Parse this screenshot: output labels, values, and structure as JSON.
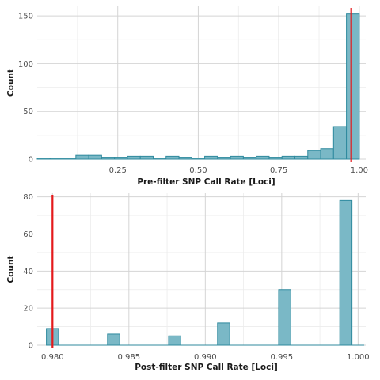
{
  "chart_data": [
    {
      "type": "bar",
      "subtype": "histogram",
      "xlabel": "Pre-filter SNP Call Rate [Loci]",
      "ylabel": "Count",
      "xlim": [
        0.0,
        1.02
      ],
      "ylim": [
        0,
        160
      ],
      "x_ticks": [
        0.25,
        0.5,
        0.75,
        1.0
      ],
      "x_tick_labels": [
        "0.25",
        "0.50",
        "0.75",
        "1.00"
      ],
      "y_ticks": [
        0,
        50,
        100,
        150
      ],
      "y_tick_labels": [
        "0",
        "50",
        "100",
        "150"
      ],
      "bin_width": 0.04,
      "bin_starts": [
        0.0,
        0.04,
        0.08,
        0.12,
        0.16,
        0.2,
        0.24,
        0.28,
        0.32,
        0.36,
        0.4,
        0.44,
        0.48,
        0.52,
        0.56,
        0.6,
        0.64,
        0.68,
        0.72,
        0.76,
        0.8,
        0.84,
        0.88,
        0.92,
        0.96
      ],
      "values": [
        1,
        1,
        1,
        4,
        4,
        2,
        2,
        3,
        3,
        1,
        3,
        2,
        1,
        3,
        2,
        3,
        2,
        3,
        2,
        3,
        3,
        9,
        11,
        34,
        152
      ],
      "threshold_line": 0.975,
      "grid": true,
      "bar_color": "#7ab8c6",
      "bar_edge_color": "#2f8a9e",
      "line_color": "#e41a1c"
    },
    {
      "type": "bar",
      "subtype": "histogram",
      "xlabel": "Post-filter SNP Call Rate [Loci]",
      "ylabel": "Count",
      "xlim": [
        0.979,
        1.0005
      ],
      "ylim": [
        0,
        82
      ],
      "x_ticks": [
        0.98,
        0.985,
        0.99,
        0.995,
        1.0
      ],
      "x_tick_labels": [
        "0.980",
        "0.985",
        "0.990",
        "0.995",
        "1.000"
      ],
      "y_ticks": [
        0,
        20,
        40,
        60,
        80
      ],
      "y_tick_labels": [
        "0",
        "20",
        "40",
        "60",
        "80"
      ],
      "bin_width": 0.0008,
      "bin_starts": [
        0.9796,
        0.9804,
        0.9812,
        0.982,
        0.9828,
        0.9836,
        0.9844,
        0.9852,
        0.986,
        0.9868,
        0.9876,
        0.9884,
        0.9892,
        0.99,
        0.9908,
        0.9916,
        0.9924,
        0.9932,
        0.994,
        0.9948,
        0.9956,
        0.9964,
        0.9972,
        0.998,
        0.9988,
        0.9996
      ],
      "values": [
        9,
        0,
        0,
        0,
        0,
        6,
        0,
        0,
        0,
        0,
        5,
        0,
        0,
        0,
        12,
        0,
        0,
        0,
        0,
        30,
        0,
        0,
        0,
        0,
        78,
        0
      ],
      "threshold_line": 0.98,
      "grid": true,
      "bar_color": "#7ab8c6",
      "bar_edge_color": "#2f8a9e",
      "line_color": "#e41a1c"
    }
  ]
}
